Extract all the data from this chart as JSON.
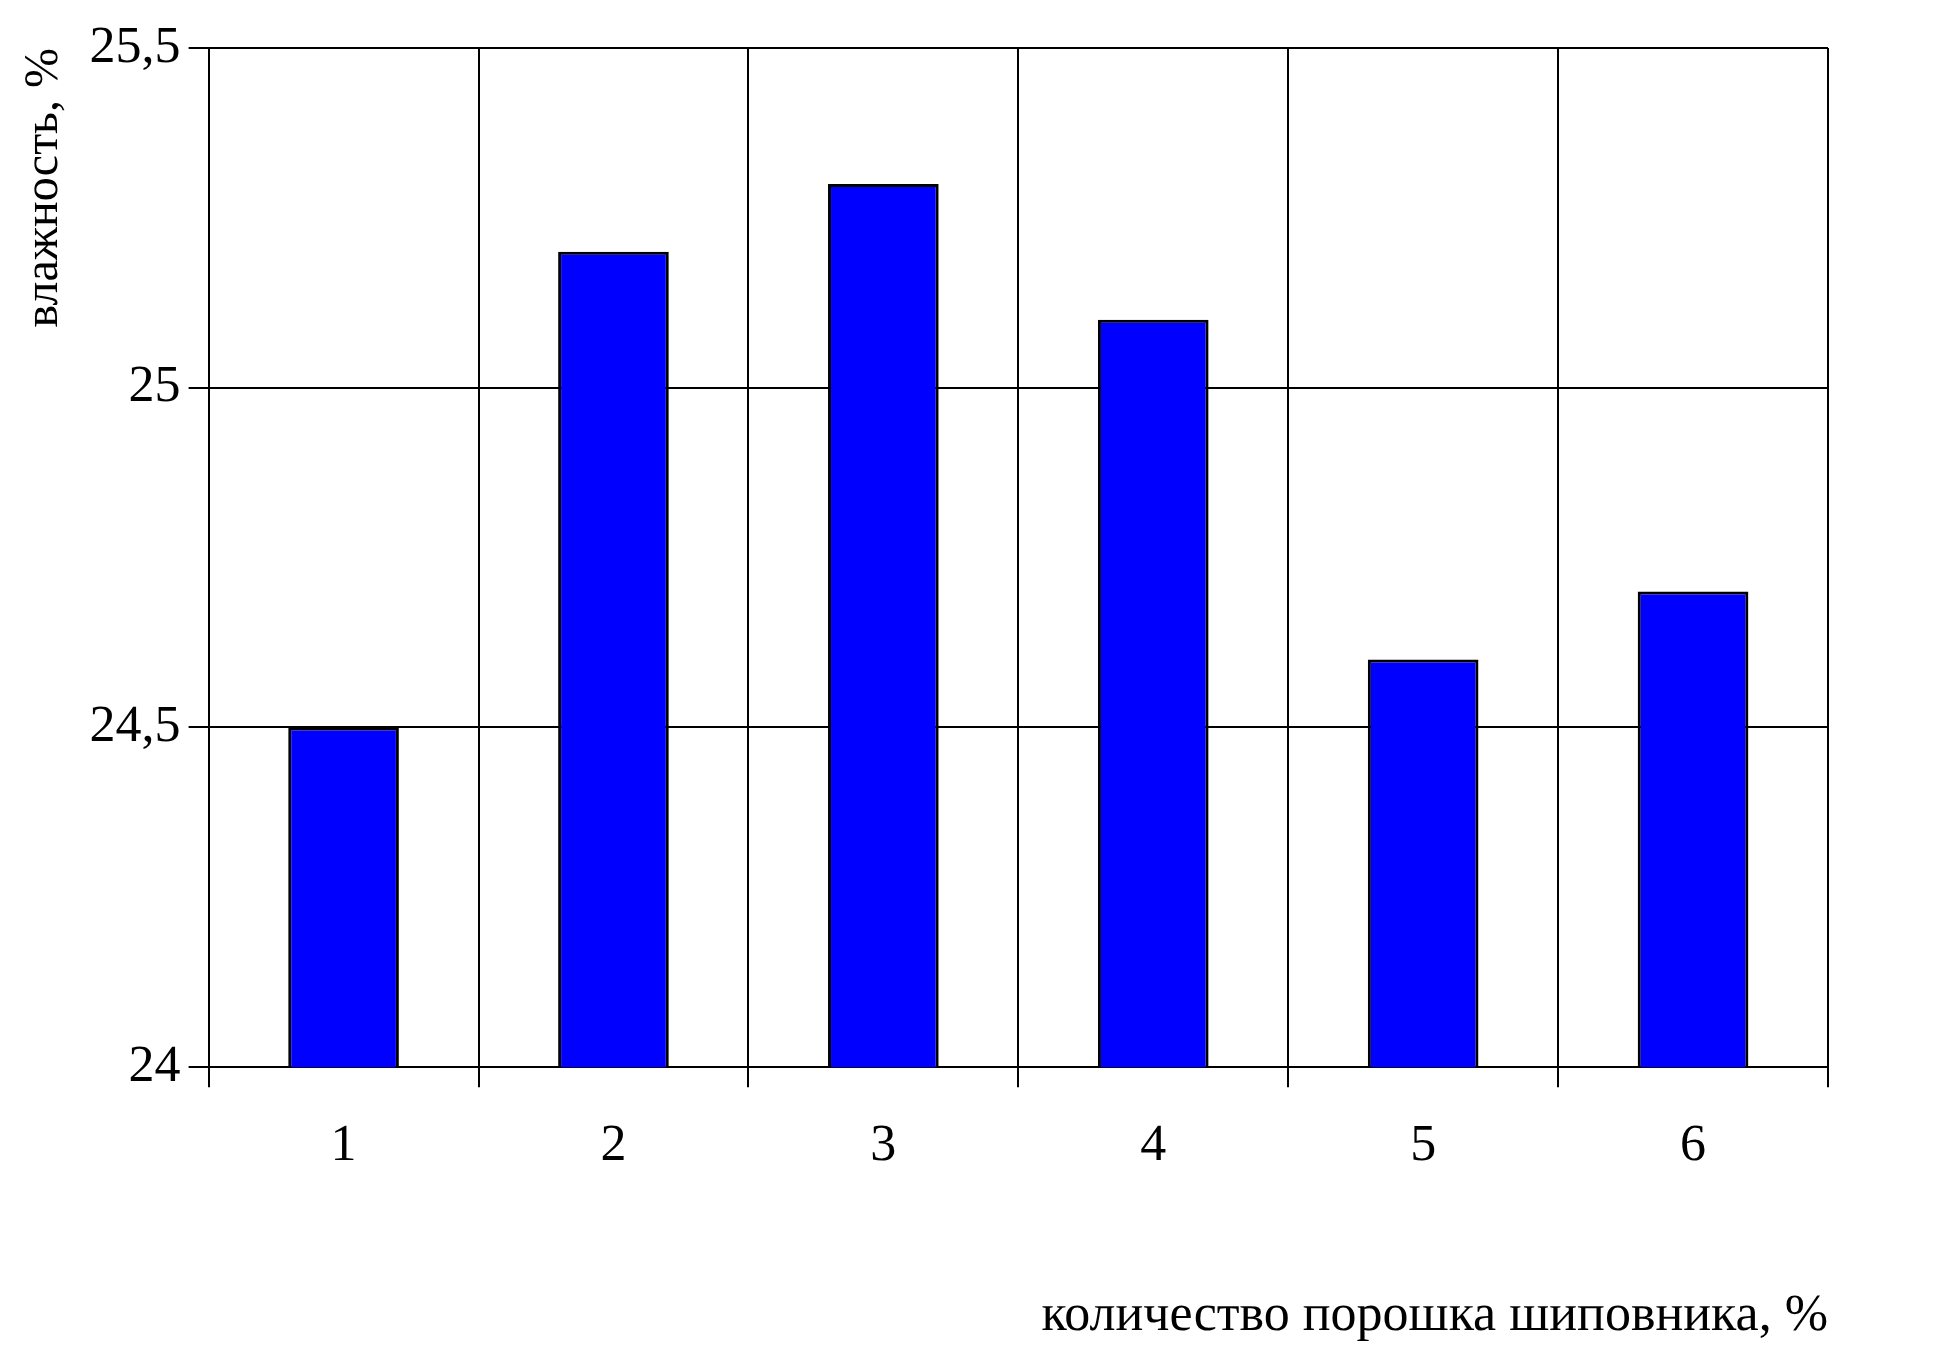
{
  "chart_data": {
    "type": "bar",
    "xlabel": "количество порошка шиповника, %",
    "ylabel": "влажность, %",
    "categories": [
      "1",
      "2",
      "3",
      "4",
      "5",
      "6"
    ],
    "values": [
      24.5,
      25.2,
      25.3,
      25.1,
      24.6,
      24.7
    ],
    "color": "#0000ff",
    "ylim": [
      24,
      25.5
    ],
    "yticks": [
      24,
      {
        "value": 24.5,
        "label": "24,5"
      },
      25,
      {
        "value": 25.5,
        "label": "25,5"
      }
    ],
    "grid": true,
    "legend": false
  }
}
